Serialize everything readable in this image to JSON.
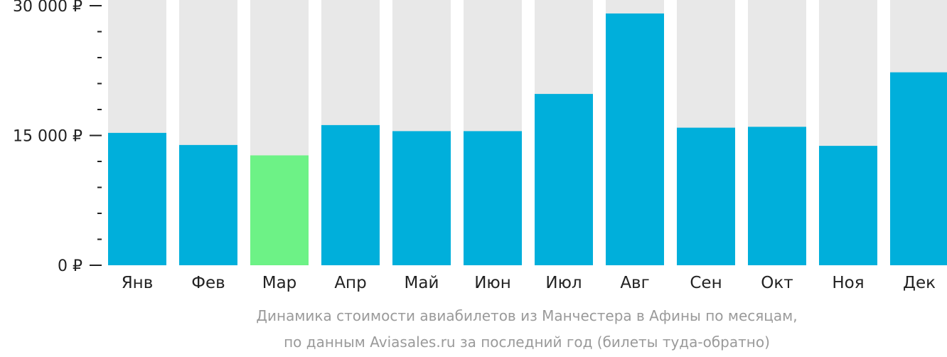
{
  "chart_data": {
    "type": "bar",
    "categories": [
      "Янв",
      "Фев",
      "Мар",
      "Апр",
      "Май",
      "Июн",
      "Июл",
      "Авг",
      "Сен",
      "Окт",
      "Ноя",
      "Дек"
    ],
    "values": [
      15300,
      13900,
      12700,
      16200,
      15500,
      15500,
      19800,
      29100,
      15900,
      16000,
      13800,
      22300
    ],
    "ylim": [
      0,
      30000
    ],
    "y_ticks": [
      {
        "value": 0,
        "label": "0 ₽"
      },
      {
        "value": 15000,
        "label": "15 000 ₽"
      },
      {
        "value": 30000,
        "label": "30 000 ₽"
      }
    ],
    "minor_tick_step": 3000,
    "highlight_index": 2,
    "colors": {
      "bar": "#00afdb",
      "highlight": "#6df286",
      "background_bar": "#e8e8e8",
      "axis": "#222222"
    },
    "caption_lines": [
      "Динамика стоимости авиабилетов из Манчестера в Афины по месяцам,",
      "по данным Aviasales.ru за последний год (билеты туда-обратно)"
    ],
    "grid": false,
    "legend": "none"
  }
}
